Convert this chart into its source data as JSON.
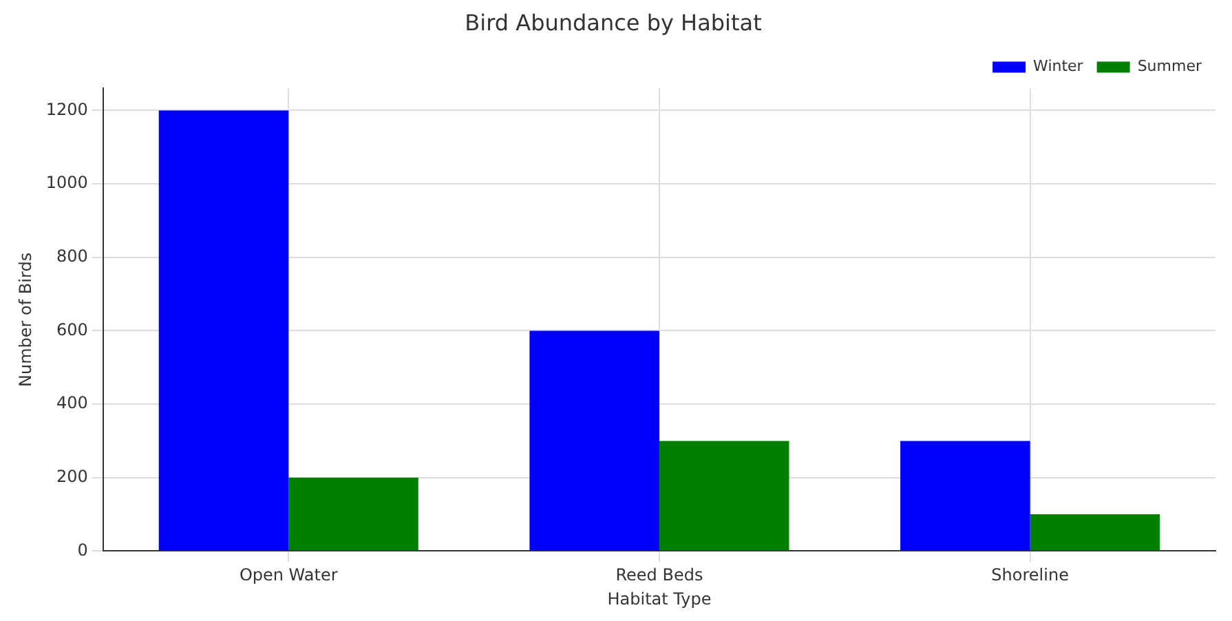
{
  "chart_data": {
    "type": "bar",
    "title": "Bird Abundance by Habitat",
    "xlabel": "Habitat Type",
    "ylabel": "Number of Birds",
    "categories": [
      "Open Water",
      "Reed Beds",
      "Shoreline"
    ],
    "series": [
      {
        "name": "Winter",
        "color": "#0000ff",
        "values": [
          1200,
          600,
          300
        ]
      },
      {
        "name": "Summer",
        "color": "#008000",
        "values": [
          200,
          300,
          100
        ]
      }
    ],
    "ylim": [
      0,
      1260
    ],
    "yticks": [
      0,
      200,
      400,
      600,
      800,
      1000,
      1200
    ],
    "grid": true,
    "legend": "top right"
  }
}
